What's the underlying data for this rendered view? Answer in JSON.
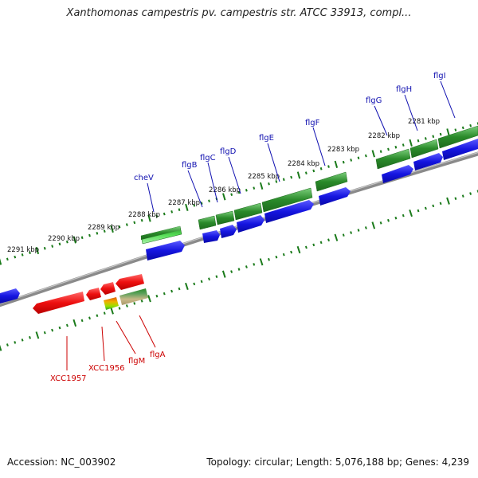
{
  "title": "Xanthomonas campestris pv. campestris str. ATCC 33913, compl...",
  "accession": "Accession: NC_003902",
  "summary": "Topology: circular; Length: 5,076,188 bp; Genes: 4,239",
  "colors": {
    "forward_label": "#1010b0",
    "reverse_label": "#cc0000",
    "backbone": "#808080",
    "ticks": "#1a7a1a",
    "cds": "#2a8a2a",
    "gene_forward": "#1515e0",
    "gene_reverse": "#ee1010"
  },
  "scale": {
    "unit": "kbp",
    "tick_labels": [
      "2281 kbp",
      "2282 kbp",
      "2283 kbp",
      "2284 kbp",
      "2285 kbp",
      "2286 kbp",
      "2287 kbp",
      "2288 kbp",
      "2289 kbp",
      "2290 kbp",
      "2291 kbp"
    ]
  },
  "forward_genes": [
    "cheV",
    "flgB",
    "flgC",
    "flgD",
    "flgE",
    "flgF",
    "flgG",
    "flgH",
    "flgI"
  ],
  "reverse_genes": [
    "XCC1957",
    "XCC1956",
    "flgM",
    "flgA"
  ]
}
